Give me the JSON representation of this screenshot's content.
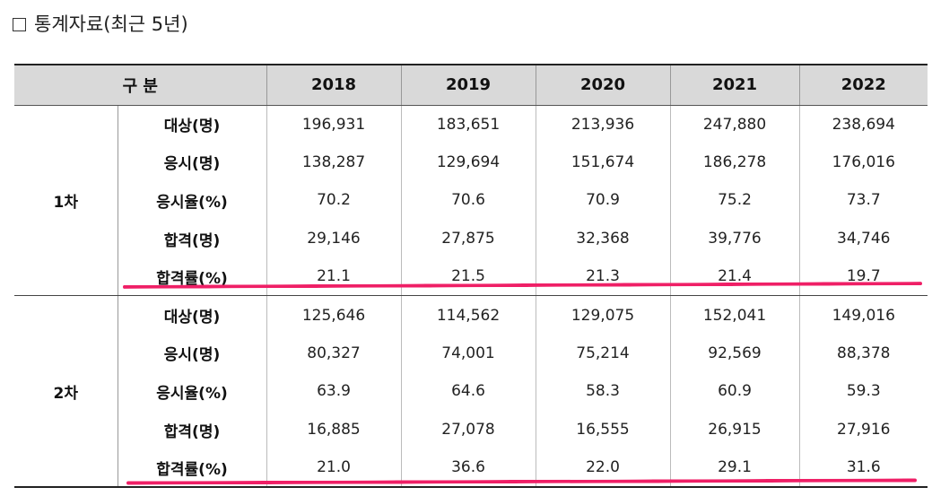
{
  "title": "통계자료(최근 5년)",
  "colors": {
    "header_bg": "#d9d9d9",
    "underline": "#ef1f66"
  },
  "table": {
    "header": {
      "category": "구 분",
      "years": [
        "2018",
        "2019",
        "2020",
        "2021",
        "2022"
      ]
    },
    "groups": [
      {
        "label": "1차",
        "rows": [
          {
            "label": "대상(명)",
            "values": [
              "196,931",
              "183,651",
              "213,936",
              "247,880",
              "238,694"
            ]
          },
          {
            "label": "응시(명)",
            "values": [
              "138,287",
              "129,694",
              "151,674",
              "186,278",
              "176,016"
            ]
          },
          {
            "label": "응시율(%)",
            "values": [
              "70.2",
              "70.6",
              "70.9",
              "75.2",
              "73.7"
            ]
          },
          {
            "label": "합격(명)",
            "values": [
              "29,146",
              "27,875",
              "32,368",
              "39,776",
              "34,746"
            ]
          },
          {
            "label": "합격률(%)",
            "values": [
              "21.1",
              "21.5",
              "21.3",
              "21.4",
              "19.7"
            ]
          }
        ]
      },
      {
        "label": "2차",
        "rows": [
          {
            "label": "대상(명)",
            "values": [
              "125,646",
              "114,562",
              "129,075",
              "152,041",
              "149,016"
            ]
          },
          {
            "label": "응시(명)",
            "values": [
              "80,327",
              "74,001",
              "75,214",
              "92,569",
              "88,378"
            ]
          },
          {
            "label": "응시율(%)",
            "values": [
              "63.9",
              "64.6",
              "58.3",
              "60.9",
              "59.3"
            ]
          },
          {
            "label": "합격(명)",
            "values": [
              "16,885",
              "27,078",
              "16,555",
              "26,915",
              "27,916"
            ]
          },
          {
            "label": "합격률(%)",
            "values": [
              "21.0",
              "36.6",
              "22.0",
              "29.1",
              "31.6"
            ]
          }
        ]
      }
    ]
  }
}
